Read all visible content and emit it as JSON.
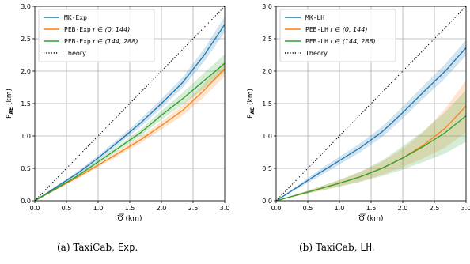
{
  "chart_data": [
    {
      "type": "line",
      "caption_prefix": "(a) TaxiCab, ",
      "caption_mono": "Exp",
      "caption_suffix": ".",
      "xlabel": "Q",
      "xlabel_unit": "(km)",
      "ylabel": "P",
      "ylabel_sub": "AE",
      "ylabel_unit": "(km)",
      "xlim": [
        0,
        3
      ],
      "ylim": [
        0,
        3
      ],
      "xticks": [
        "0.0",
        "0.5",
        "1.0",
        "1.5",
        "2.0",
        "2.5",
        "3.0"
      ],
      "yticks": [
        "0.0",
        "0.5",
        "1.0",
        "1.5",
        "2.0",
        "2.5",
        "3.0"
      ],
      "grid": true,
      "legend_position": "top-left",
      "series": [
        {
          "name": "MK-Exp",
          "name_suffix": "",
          "color": "#1f77b4",
          "x": [
            0,
            0.67,
            1.0,
            1.33,
            1.67,
            2.0,
            2.33,
            2.67,
            3.0
          ],
          "y": [
            0,
            0.42,
            0.66,
            0.92,
            1.2,
            1.5,
            1.82,
            2.24,
            2.72
          ],
          "band": [
            0,
            0.03,
            0.04,
            0.05,
            0.06,
            0.07,
            0.08,
            0.1,
            0.12
          ]
        },
        {
          "name": "PEB-Exp",
          "name_suffix": "r ∈ (0, 144)",
          "color": "#ff7f0e",
          "x": [
            0,
            0.67,
            1.0,
            1.33,
            1.67,
            2.0,
            2.33,
            2.67,
            3.0
          ],
          "y": [
            0,
            0.36,
            0.55,
            0.74,
            0.94,
            1.16,
            1.39,
            1.7,
            2.04
          ],
          "band": [
            0,
            0.02,
            0.03,
            0.04,
            0.05,
            0.06,
            0.08,
            0.1,
            0.12
          ]
        },
        {
          "name": "PEB-Exp",
          "name_suffix": "r ∈ (144, 288)",
          "color": "#2ca02c",
          "x": [
            0,
            0.67,
            1.0,
            1.33,
            1.67,
            2.0,
            2.33,
            2.67,
            3.0
          ],
          "y": [
            0,
            0.38,
            0.6,
            0.82,
            1.05,
            1.32,
            1.57,
            1.85,
            2.12
          ],
          "band": [
            0,
            0.02,
            0.03,
            0.04,
            0.05,
            0.07,
            0.09,
            0.12,
            0.14
          ]
        },
        {
          "name": "Theory",
          "name_suffix": "",
          "color": "#000000",
          "dashed": true,
          "x": [
            0,
            3
          ],
          "y": [
            0,
            3
          ]
        }
      ]
    },
    {
      "type": "line",
      "caption_prefix": "(b) TaxiCab, ",
      "caption_mono": "LH",
      "caption_suffix": ".",
      "xlabel": "Q",
      "xlabel_unit": "(km)",
      "ylabel": "P",
      "ylabel_sub": "AE",
      "ylabel_unit": "(km)",
      "xlim": [
        0,
        3
      ],
      "ylim": [
        0,
        3
      ],
      "xticks": [
        "0.0",
        "0.5",
        "1.0",
        "1.5",
        "2.0",
        "2.5",
        "3.0"
      ],
      "yticks": [
        "0.0",
        "0.5",
        "1.0",
        "1.5",
        "2.0",
        "2.5",
        "3.0"
      ],
      "grid": true,
      "legend_position": "top-left",
      "series": [
        {
          "name": "MK-LH",
          "name_suffix": "",
          "color": "#1f77b4",
          "x": [
            0,
            0.67,
            1.0,
            1.33,
            1.67,
            2.0,
            2.33,
            2.67,
            3.0
          ],
          "y": [
            0,
            0.42,
            0.62,
            0.82,
            1.06,
            1.36,
            1.68,
            2.0,
            2.36
          ],
          "band": [
            0,
            0.05,
            0.06,
            0.07,
            0.08,
            0.09,
            0.1,
            0.11,
            0.12
          ]
        },
        {
          "name": "PEB-LH",
          "name_suffix": "r ∈ (0, 144)",
          "color": "#ff7f0e",
          "x": [
            0,
            0.67,
            1.0,
            1.33,
            1.67,
            2.0,
            2.33,
            2.67,
            3.0
          ],
          "y": [
            0,
            0.18,
            0.27,
            0.37,
            0.5,
            0.66,
            0.86,
            1.12,
            1.46
          ],
          "band": [
            0,
            0.03,
            0.05,
            0.07,
            0.1,
            0.14,
            0.2,
            0.3,
            0.4
          ]
        },
        {
          "name": "PEB-LH",
          "name_suffix": "r ∈ (144, 288)",
          "color": "#2ca02c",
          "x": [
            0,
            0.67,
            1.0,
            1.33,
            1.67,
            2.0,
            2.33,
            2.67,
            3.0
          ],
          "y": [
            0,
            0.18,
            0.27,
            0.37,
            0.5,
            0.66,
            0.84,
            1.05,
            1.31
          ],
          "band": [
            0,
            0.03,
            0.05,
            0.08,
            0.12,
            0.18,
            0.24,
            0.32,
            0.4
          ]
        },
        {
          "name": "Theory",
          "name_suffix": "",
          "color": "#000000",
          "dashed": true,
          "x": [
            0,
            3
          ],
          "y": [
            0,
            3
          ]
        }
      ]
    }
  ]
}
